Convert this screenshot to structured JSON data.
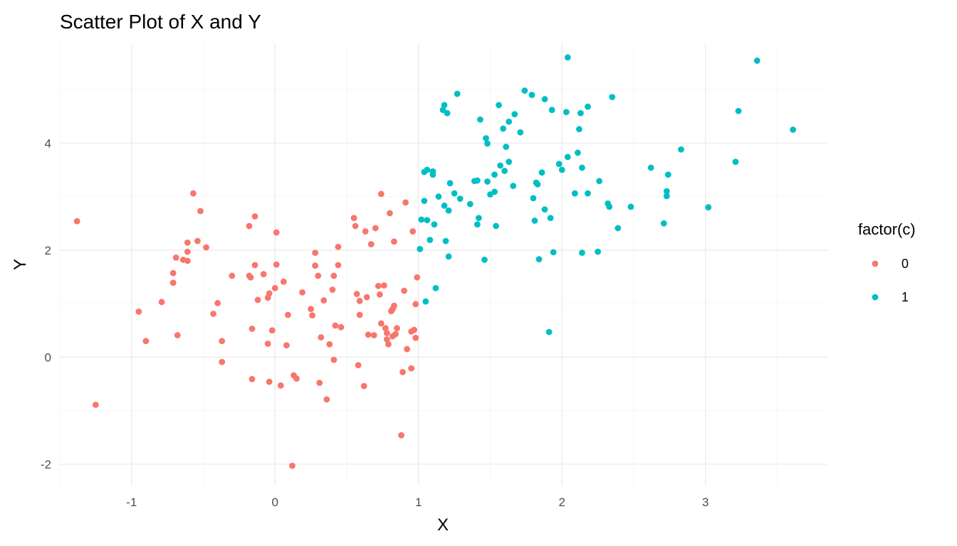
{
  "chart_data": {
    "type": "scatter",
    "title": "Scatter Plot of X and Y",
    "xlabel": "X",
    "ylabel": "Y",
    "xlim": [
      -1.5,
      3.85
    ],
    "ylim": [
      -2.4,
      5.85
    ],
    "x_ticks": [
      -1,
      0,
      1,
      2,
      3
    ],
    "x_tick_labels": [
      "-1",
      "0",
      "1",
      "2",
      "3"
    ],
    "y_ticks": [
      -2,
      0,
      2,
      4
    ],
    "y_tick_labels": [
      "-2",
      "0",
      "2",
      "4"
    ],
    "grid": true,
    "legend": {
      "title": "factor(c)",
      "position": "right"
    },
    "series": [
      {
        "name": "0",
        "color": "#F8766D",
        "points": [
          [
            -1.38,
            2.54
          ],
          [
            -1.25,
            -0.89
          ],
          [
            -0.95,
            0.85
          ],
          [
            -0.9,
            0.3
          ],
          [
            -0.79,
            1.03
          ],
          [
            -0.71,
            1.57
          ],
          [
            -0.71,
            1.39
          ],
          [
            -0.69,
            1.86
          ],
          [
            -0.68,
            0.41
          ],
          [
            -0.64,
            1.82
          ],
          [
            -0.61,
            2.14
          ],
          [
            -0.61,
            1.97
          ],
          [
            -0.61,
            1.8
          ],
          [
            -0.57,
            3.06
          ],
          [
            -0.54,
            2.17
          ],
          [
            -0.52,
            2.73
          ],
          [
            -0.48,
            2.05
          ],
          [
            -0.43,
            0.81
          ],
          [
            -0.4,
            1.01
          ],
          [
            -0.37,
            0.3
          ],
          [
            -0.37,
            -0.09
          ],
          [
            -0.3,
            1.52
          ],
          [
            -0.18,
            2.45
          ],
          [
            -0.18,
            1.52
          ],
          [
            -0.17,
            1.49
          ],
          [
            -0.16,
            0.53
          ],
          [
            -0.16,
            -0.41
          ],
          [
            -0.14,
            2.63
          ],
          [
            -0.14,
            1.72
          ],
          [
            -0.12,
            1.07
          ],
          [
            -0.08,
            1.55
          ],
          [
            -0.05,
            0.25
          ],
          [
            -0.05,
            1.11
          ],
          [
            -0.04,
            1.19
          ],
          [
            -0.04,
            -0.46
          ],
          [
            -0.02,
            0.5
          ],
          [
            0.0,
            1.29
          ],
          [
            0.01,
            1.73
          ],
          [
            0.01,
            2.33
          ],
          [
            0.04,
            -0.53
          ],
          [
            0.06,
            1.41
          ],
          [
            0.08,
            0.22
          ],
          [
            0.09,
            0.79
          ],
          [
            0.12,
            -2.03
          ],
          [
            0.13,
            -0.34
          ],
          [
            0.15,
            -0.4
          ],
          [
            0.19,
            1.21
          ],
          [
            0.25,
            0.9
          ],
          [
            0.26,
            0.78
          ],
          [
            0.28,
            1.71
          ],
          [
            0.28,
            1.95
          ],
          [
            0.3,
            1.52
          ],
          [
            0.31,
            -0.48
          ],
          [
            0.32,
            0.37
          ],
          [
            0.34,
            1.06
          ],
          [
            0.36,
            -0.79
          ],
          [
            0.38,
            0.24
          ],
          [
            0.4,
            1.26
          ],
          [
            0.41,
            1.52
          ],
          [
            0.41,
            -0.05
          ],
          [
            0.42,
            0.59
          ],
          [
            0.44,
            1.72
          ],
          [
            0.44,
            2.06
          ],
          [
            0.46,
            0.56
          ],
          [
            0.55,
            2.6
          ],
          [
            0.56,
            2.45
          ],
          [
            0.57,
            1.18
          ],
          [
            0.58,
            -0.15
          ],
          [
            0.59,
            1.05
          ],
          [
            0.59,
            0.79
          ],
          [
            0.62,
            -0.54
          ],
          [
            0.63,
            2.35
          ],
          [
            0.64,
            1.12
          ],
          [
            0.65,
            0.42
          ],
          [
            0.67,
            2.11
          ],
          [
            0.69,
            0.41
          ],
          [
            0.7,
            2.41
          ],
          [
            0.72,
            1.33
          ],
          [
            0.73,
            1.17
          ],
          [
            0.74,
            0.63
          ],
          [
            0.74,
            3.05
          ],
          [
            0.76,
            1.34
          ],
          [
            0.77,
            0.54
          ],
          [
            0.78,
            0.45
          ],
          [
            0.78,
            0.33
          ],
          [
            0.79,
            0.24
          ],
          [
            0.8,
            2.69
          ],
          [
            0.81,
            0.86
          ],
          [
            0.82,
            0.9
          ],
          [
            0.82,
            0.39
          ],
          [
            0.83,
            0.96
          ],
          [
            0.83,
            2.16
          ],
          [
            0.84,
            0.43
          ],
          [
            0.85,
            0.54
          ],
          [
            0.88,
            -1.46
          ],
          [
            0.89,
            -0.28
          ],
          [
            0.9,
            1.24
          ],
          [
            0.91,
            2.89
          ],
          [
            0.92,
            0.15
          ],
          [
            0.95,
            -0.21
          ],
          [
            0.95,
            0.48
          ],
          [
            0.96,
            2.35
          ],
          [
            0.97,
            0.51
          ],
          [
            0.98,
            0.36
          ],
          [
            0.98,
            0.99
          ],
          [
            0.99,
            1.49
          ]
        ]
      },
      {
        "name": "1",
        "color": "#00BFC4",
        "points": [
          [
            1.01,
            2.02
          ],
          [
            1.02,
            2.57
          ],
          [
            1.04,
            3.46
          ],
          [
            1.04,
            2.92
          ],
          [
            1.05,
            1.04
          ],
          [
            1.06,
            3.5
          ],
          [
            1.06,
            2.56
          ],
          [
            1.08,
            2.19
          ],
          [
            1.1,
            3.47
          ],
          [
            1.1,
            3.41
          ],
          [
            1.11,
            2.48
          ],
          [
            1.12,
            1.29
          ],
          [
            1.14,
            3.0
          ],
          [
            1.17,
            4.62
          ],
          [
            1.18,
            4.71
          ],
          [
            1.18,
            2.83
          ],
          [
            1.19,
            2.17
          ],
          [
            1.2,
            4.56
          ],
          [
            1.21,
            2.74
          ],
          [
            1.21,
            1.88
          ],
          [
            1.22,
            3.25
          ],
          [
            1.25,
            3.06
          ],
          [
            1.27,
            4.92
          ],
          [
            1.29,
            2.96
          ],
          [
            1.36,
            2.86
          ],
          [
            1.39,
            3.29
          ],
          [
            1.41,
            3.3
          ],
          [
            1.41,
            2.48
          ],
          [
            1.42,
            2.6
          ],
          [
            1.43,
            4.44
          ],
          [
            1.46,
            1.82
          ],
          [
            1.47,
            4.09
          ],
          [
            1.48,
            3.99
          ],
          [
            1.48,
            3.28
          ],
          [
            1.5,
            3.04
          ],
          [
            1.53,
            3.09
          ],
          [
            1.53,
            3.41
          ],
          [
            1.54,
            2.45
          ],
          [
            1.56,
            4.71
          ],
          [
            1.57,
            3.58
          ],
          [
            1.59,
            4.27
          ],
          [
            1.6,
            3.48
          ],
          [
            1.61,
            3.93
          ],
          [
            1.63,
            3.65
          ],
          [
            1.63,
            4.4
          ],
          [
            1.66,
            3.2
          ],
          [
            1.67,
            4.54
          ],
          [
            1.71,
            4.2
          ],
          [
            1.74,
            4.98
          ],
          [
            1.79,
            4.9
          ],
          [
            1.8,
            2.97
          ],
          [
            1.81,
            2.55
          ],
          [
            1.82,
            3.26
          ],
          [
            1.83,
            3.23
          ],
          [
            1.84,
            1.83
          ],
          [
            1.86,
            3.45
          ],
          [
            1.88,
            4.82
          ],
          [
            1.88,
            2.76
          ],
          [
            1.91,
            0.47
          ],
          [
            1.92,
            2.6
          ],
          [
            1.93,
            4.62
          ],
          [
            1.94,
            1.96
          ],
          [
            1.98,
            3.61
          ],
          [
            2.0,
            3.5
          ],
          [
            2.03,
            4.58
          ],
          [
            2.04,
            3.74
          ],
          [
            2.04,
            5.6
          ],
          [
            2.09,
            3.06
          ],
          [
            2.11,
            3.82
          ],
          [
            2.12,
            4.26
          ],
          [
            2.13,
            4.56
          ],
          [
            2.14,
            1.95
          ],
          [
            2.14,
            3.54
          ],
          [
            2.18,
            3.06
          ],
          [
            2.18,
            4.68
          ],
          [
            2.25,
            1.97
          ],
          [
            2.26,
            3.29
          ],
          [
            2.32,
            2.87
          ],
          [
            2.33,
            2.81
          ],
          [
            2.35,
            4.86
          ],
          [
            2.39,
            2.41
          ],
          [
            2.48,
            2.81
          ],
          [
            2.62,
            3.54
          ],
          [
            2.71,
            2.5
          ],
          [
            2.73,
            3.1
          ],
          [
            2.73,
            3.01
          ],
          [
            2.74,
            3.41
          ],
          [
            2.83,
            3.88
          ],
          [
            3.02,
            2.8
          ],
          [
            3.21,
            3.65
          ],
          [
            3.23,
            4.6
          ],
          [
            3.36,
            5.54
          ],
          [
            3.61,
            4.25
          ]
        ]
      }
    ]
  }
}
